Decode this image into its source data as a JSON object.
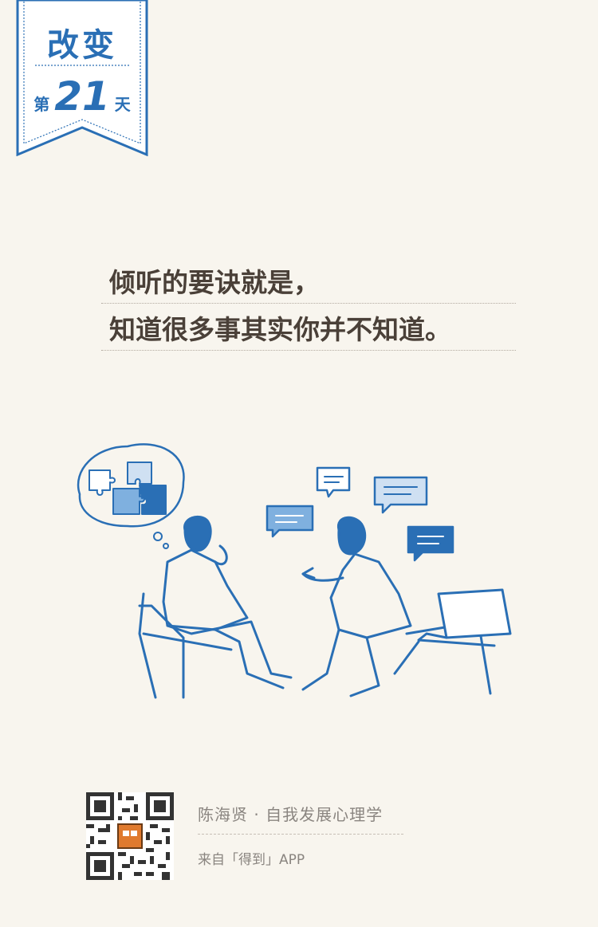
{
  "banner": {
    "title": "改变",
    "day_prefix": "第",
    "day_number": "21",
    "day_suffix": "天"
  },
  "quote": {
    "line1": "倾听的要诀就是，",
    "line2": "知道很多事其实你并不知道。"
  },
  "illustration": {
    "icon": "two-people-conversation-illustration"
  },
  "footer": {
    "qr_icon": "qr-code-icon",
    "title": "陈海贤 · 自我发展心理学",
    "source": "来自「得到」APP"
  },
  "colors": {
    "background": "#f8f5ee",
    "accent_blue": "#2a6fb5",
    "text_dark": "#4a4038",
    "text_muted": "#8a8580"
  }
}
